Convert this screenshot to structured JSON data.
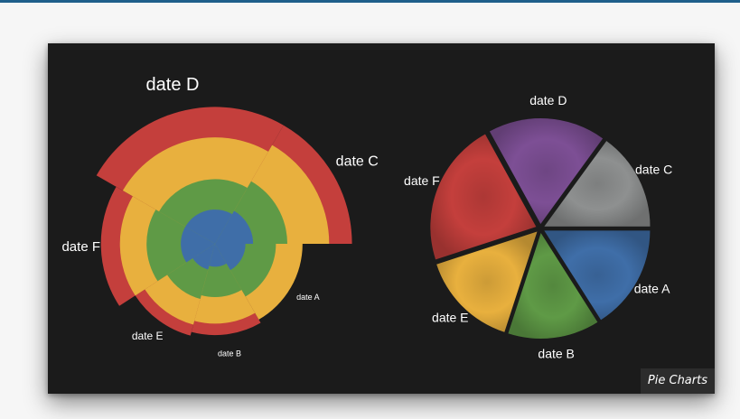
{
  "caption": "Pie Charts",
  "colors": {
    "blue": "#3f6ea8",
    "gray": "#8e9090",
    "purple": "#7d4f95",
    "red": "#c43f3c",
    "orange": "#e8b03e",
    "green": "#5f9a46",
    "background": "#1b1b1b"
  },
  "chart_data": [
    {
      "type": "pie",
      "variant": "layered-radial",
      "categories": [
        "date A",
        "date B",
        "date C",
        "date D",
        "date E",
        "date F"
      ],
      "series": [
        {
          "color": "blue",
          "values": [
            8,
            6,
            10,
            9,
            7,
            9
          ]
        },
        {
          "color": "green",
          "values": [
            16,
            14,
            19,
            17,
            15,
            18
          ]
        },
        {
          "color": "orange",
          "values": [
            23,
            21,
            30,
            28,
            22,
            25
          ]
        },
        {
          "color": "red",
          "values": [
            0,
            24,
            36,
            36,
            25,
            30
          ]
        }
      ]
    },
    {
      "type": "pie",
      "variant": "exploded",
      "categories": [
        "date A",
        "date B",
        "date E",
        "date F",
        "date D",
        "date C"
      ],
      "values": [
        16,
        14,
        15,
        22,
        18,
        15
      ],
      "colors": [
        "blue",
        "green",
        "orange",
        "red",
        "purple",
        "gray"
      ]
    }
  ]
}
